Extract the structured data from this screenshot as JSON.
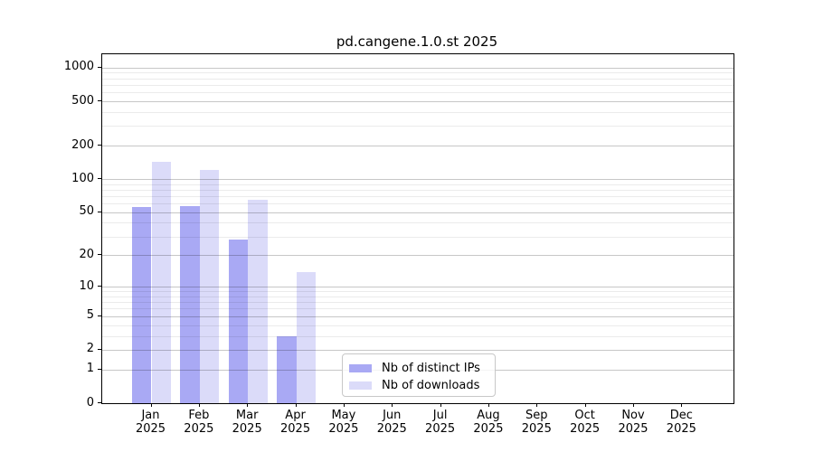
{
  "chart_data": {
    "type": "bar",
    "title": "pd.cangene.1.0.st 2025",
    "categories": [
      "Jan",
      "Feb",
      "Mar",
      "Apr",
      "May",
      "Jun",
      "Jul",
      "Aug",
      "Sep",
      "Oct",
      "Nov",
      "Dec"
    ],
    "category_year_label": "2025",
    "series": [
      {
        "name": "Nb of distinct IPs",
        "color": "#a9a9f4",
        "values": [
          56,
          57,
          28,
          3,
          0,
          0,
          0,
          0,
          0,
          0,
          0,
          0
        ]
      },
      {
        "name": "Nb of downloads",
        "color": "#dbdbf9",
        "values": [
          142,
          120,
          65,
          14,
          0,
          0,
          0,
          0,
          0,
          0,
          0,
          0
        ]
      }
    ],
    "xlabel": "",
    "ylabel": "",
    "y_scale": "log10(value+1)",
    "ylim": [
      0,
      1318
    ],
    "y_major_ticks": [
      1000,
      500,
      200,
      100,
      50,
      20,
      10,
      5,
      2,
      1,
      0
    ],
    "y_minor_gridlines": [
      3,
      4,
      6,
      7,
      8,
      9,
      30,
      40,
      60,
      70,
      80,
      90,
      300,
      400,
      600,
      700,
      800,
      900
    ],
    "layout_hints": {
      "grid": true,
      "gridlines_above_bars": true,
      "legend_position": "bottom-center",
      "bar_groups": "paired side-by-side per month"
    }
  },
  "colors": {
    "major_grid": "rgba(0,0,0,0.22)",
    "minor_grid": "rgba(0,0,0,0.08)",
    "spine": "#000000",
    "background": "#ffffff"
  }
}
